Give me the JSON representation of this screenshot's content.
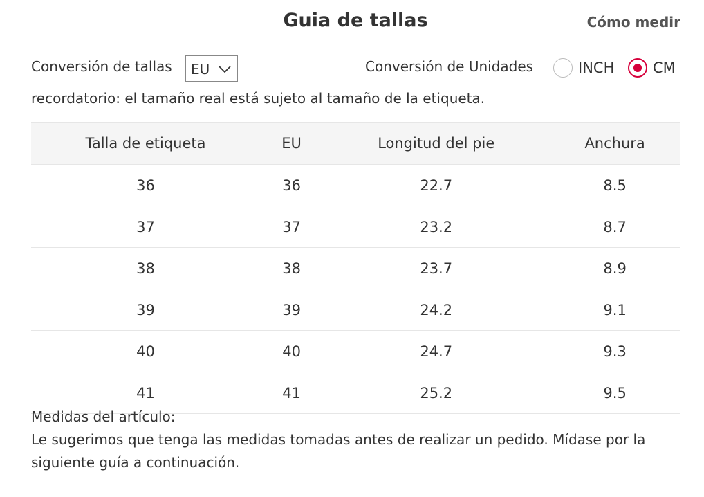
{
  "header": {
    "title": "Guia de tallas",
    "measure_link": "Cómo medir"
  },
  "controls": {
    "size_conversion_label": "Conversión de tallas",
    "size_select_value": "EU",
    "unit_conversion_label": "Conversión de Unidades",
    "units": [
      {
        "label": "INCH",
        "selected": false
      },
      {
        "label": "CM",
        "selected": true
      }
    ],
    "accent_color": "#d6003b"
  },
  "reminder": "recordatorio: el tamaño real está sujeto al tamaño de la etiqueta.",
  "table": {
    "columns": [
      "Talla de etiqueta",
      "EU",
      "Longitud del pie",
      "Anchura"
    ],
    "rows": [
      [
        "36",
        "36",
        "22.7",
        "8.5"
      ],
      [
        "37",
        "37",
        "23.2",
        "8.7"
      ],
      [
        "38",
        "38",
        "23.7",
        "8.9"
      ],
      [
        "39",
        "39",
        "24.2",
        "9.1"
      ],
      [
        "40",
        "40",
        "24.7",
        "9.3"
      ],
      [
        "41",
        "41",
        "25.2",
        "9.5"
      ]
    ]
  },
  "footer": {
    "heading": "Medidas del artículo:",
    "text": "Le sugerimos que tenga las medidas tomadas antes de realizar un pedido. Mídase por la siguiente guía a continuación."
  }
}
